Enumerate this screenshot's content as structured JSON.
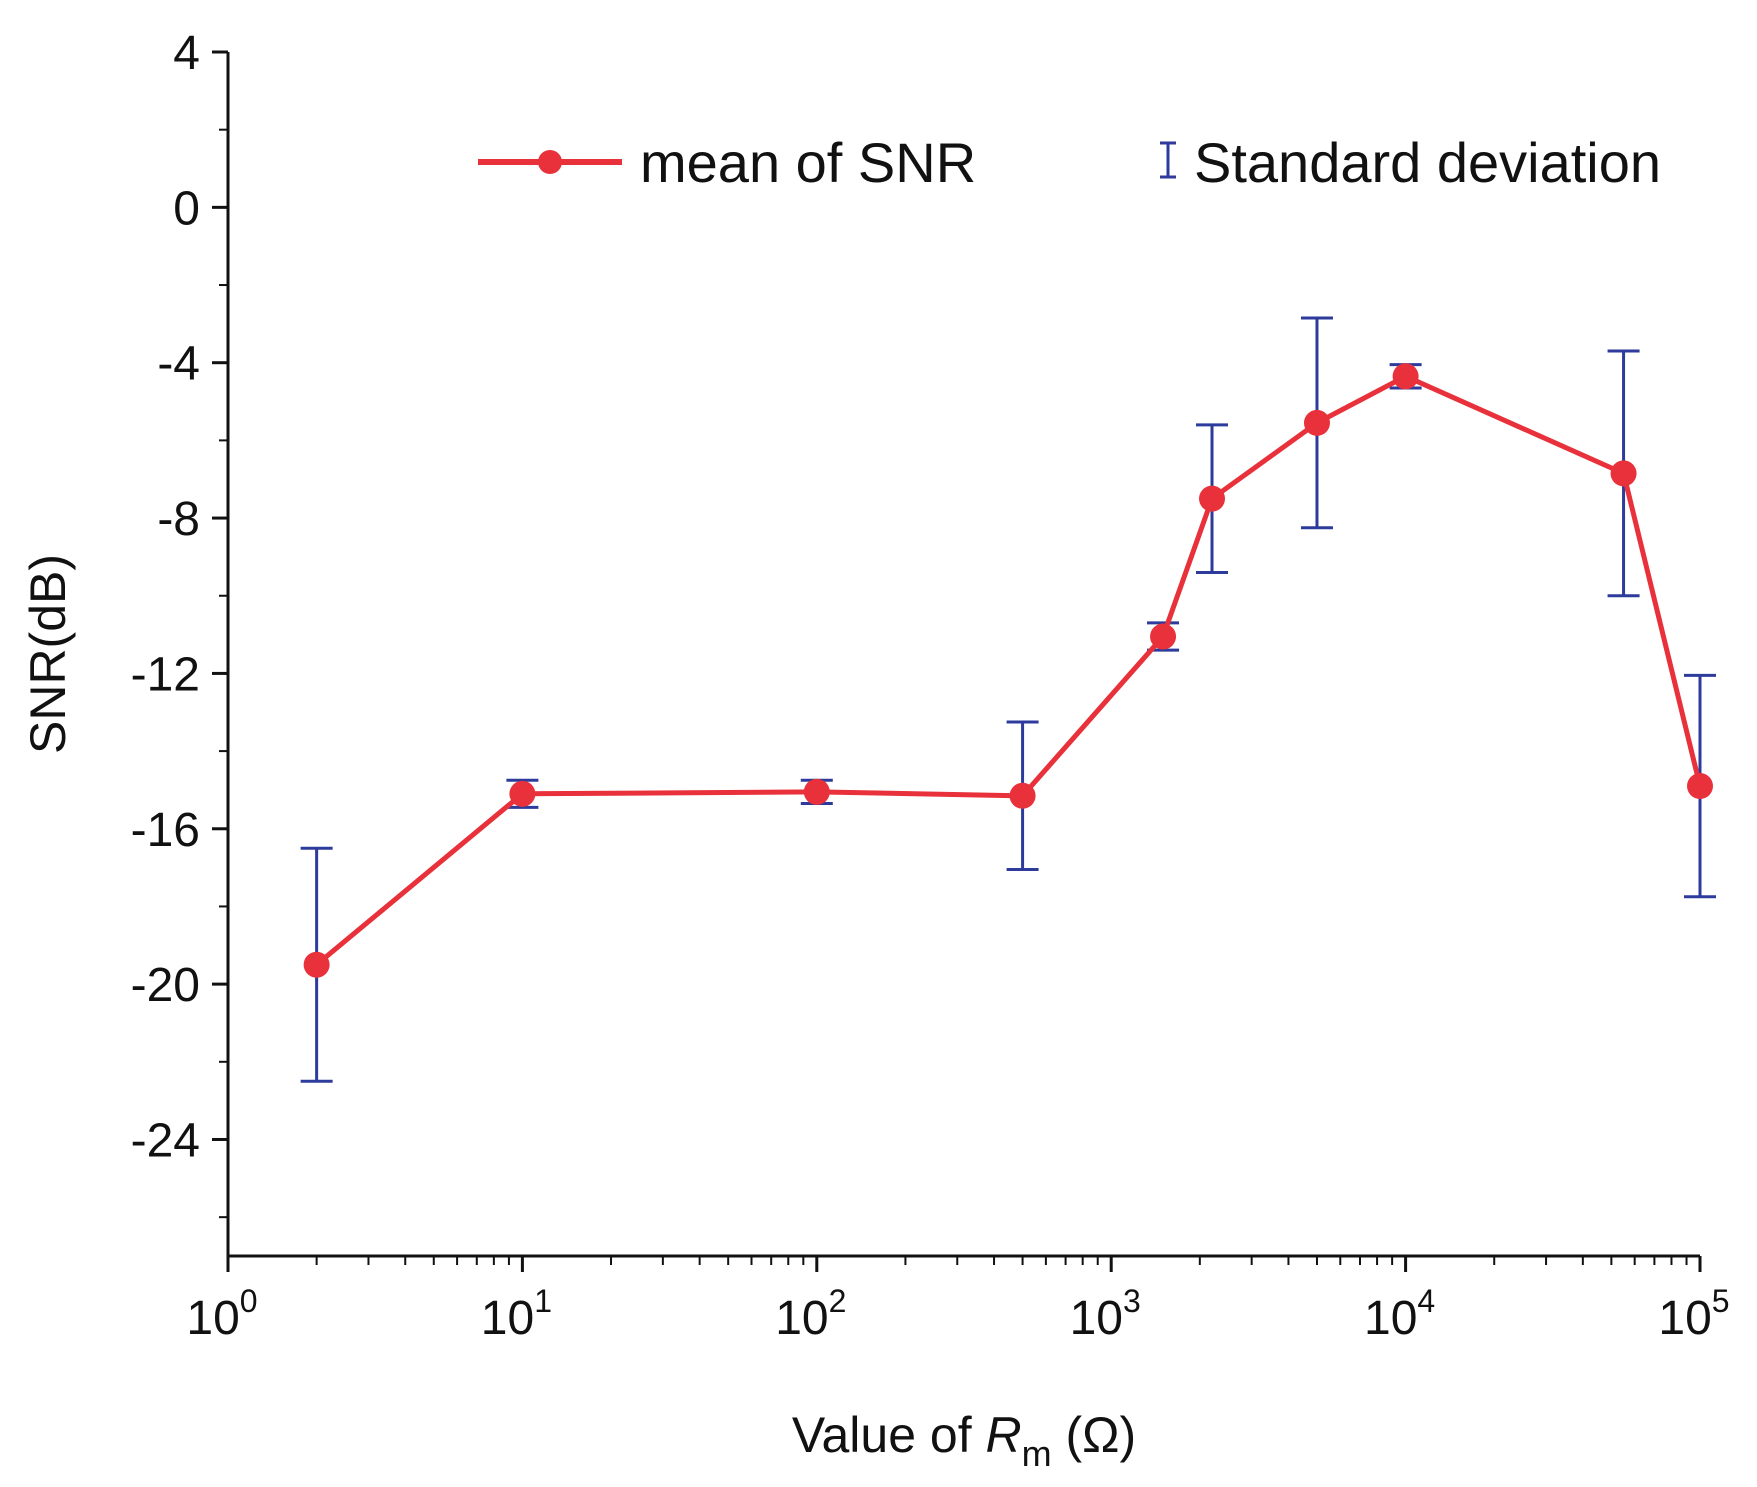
{
  "chart_data": {
    "type": "line",
    "title": "",
    "xlabel": {
      "prefix": "Value of ",
      "symbol": "R",
      "subscript": "m",
      "suffix": " (Ω)"
    },
    "ylabel": "SNR(dB)",
    "xscale": "log",
    "xlim": [
      1,
      100000
    ],
    "ylim": [
      -27,
      4
    ],
    "x_ticks": [
      {
        "value": 1,
        "base": "10",
        "exp": "0"
      },
      {
        "value": 10,
        "base": "10",
        "exp": "1"
      },
      {
        "value": 100,
        "base": "10",
        "exp": "2"
      },
      {
        "value": 1000,
        "base": "10",
        "exp": "3"
      },
      {
        "value": 10000,
        "base": "10",
        "exp": "4"
      },
      {
        "value": 100000,
        "base": "10",
        "exp": "5"
      }
    ],
    "y_ticks": [
      {
        "value": 4,
        "label": "4"
      },
      {
        "value": 0,
        "label": "0"
      },
      {
        "value": -4,
        "label": "-4"
      },
      {
        "value": -8,
        "label": "-8"
      },
      {
        "value": -12,
        "label": "-12"
      },
      {
        "value": -16,
        "label": "-16"
      },
      {
        "value": -20,
        "label": "-20"
      },
      {
        "value": -24,
        "label": "-24"
      }
    ],
    "y_minor_step": 2,
    "legend": {
      "position": "top-right",
      "entries": [
        {
          "kind": "line-marker",
          "label": "mean of SNR"
        },
        {
          "kind": "errorbar",
          "label": "Standard deviation"
        }
      ]
    },
    "series": [
      {
        "name": "mean of SNR",
        "color": "#e8313a",
        "error_color": "#2d3b9c",
        "points": [
          {
            "x": 2,
            "y": -19.5,
            "std": 3.0
          },
          {
            "x": 10,
            "y": -15.1,
            "std": 0.35
          },
          {
            "x": 100,
            "y": -15.05,
            "std": 0.3
          },
          {
            "x": 500,
            "y": -15.15,
            "std": 1.9
          },
          {
            "x": 1500,
            "y": -11.05,
            "std": 0.35
          },
          {
            "x": 2200,
            "y": -7.5,
            "std": 1.9
          },
          {
            "x": 5000,
            "y": -5.55,
            "std": 2.7
          },
          {
            "x": 10000,
            "y": -4.35,
            "std": 0.3
          },
          {
            "x": 55000,
            "y": -6.85,
            "std": 3.15
          },
          {
            "x": 100000,
            "y": -14.9,
            "std": 2.85
          }
        ]
      }
    ]
  }
}
